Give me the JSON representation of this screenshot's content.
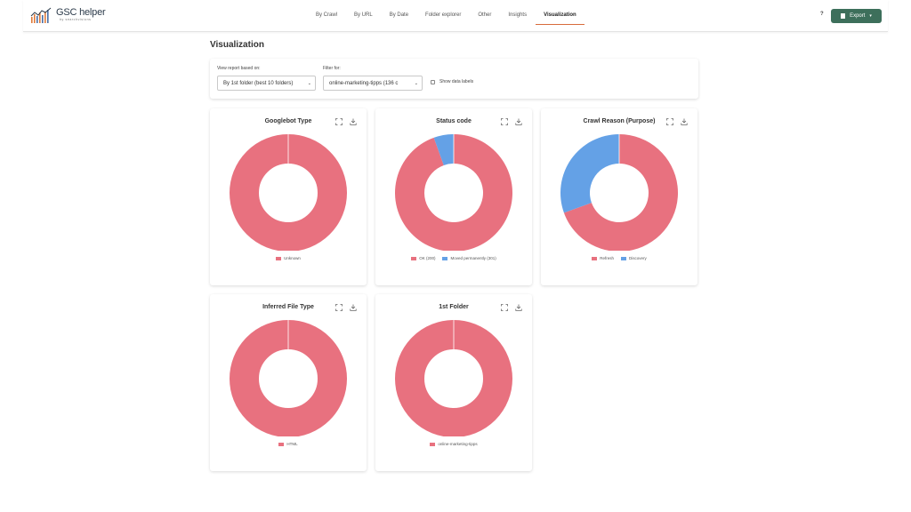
{
  "app": {
    "logo_text": "GSC helper",
    "logo_subtext": "by searchvisions"
  },
  "nav": {
    "items": [
      {
        "label": "By Crawl",
        "active": false
      },
      {
        "label": "By URL",
        "active": false
      },
      {
        "label": "By Date",
        "active": false
      },
      {
        "label": "Folder explorer",
        "active": false
      },
      {
        "label": "Other",
        "active": false
      },
      {
        "label": "Insights",
        "active": false
      },
      {
        "label": "Visualization",
        "active": true
      }
    ],
    "help_label": "?",
    "export_label": "Export"
  },
  "page": {
    "title": "Visualization"
  },
  "filters": {
    "report_label": "View report based on:",
    "report_value": "By 1st folder (best 10 folders)",
    "filter_label": "Filter for:",
    "filter_value": "online-marketing-tipps (136 c",
    "data_labels_label": "Show data labels",
    "data_labels_checked": false
  },
  "colors": {
    "pink": "#e8717f",
    "blue": "#64a1e6",
    "accent": "#d76b3c",
    "export_bg": "#3d6f5b"
  },
  "chart_data": [
    {
      "type": "pie",
      "title": "Googlebot Type",
      "categories": [
        "Unknown"
      ],
      "values": [
        100
      ],
      "colors": [
        "#e8717f"
      ],
      "legend": "bottom"
    },
    {
      "type": "pie",
      "title": "Status code",
      "categories": [
        "OK (200)",
        "Moved permanently (301)"
      ],
      "values": [
        94.5,
        5.5
      ],
      "colors": [
        "#e8717f",
        "#64a1e6"
      ],
      "legend": "bottom"
    },
    {
      "type": "pie",
      "title": "Crawl Reason (Purpose)",
      "categories": [
        "Refresh",
        "Discovery"
      ],
      "values": [
        69.5,
        30.5
      ],
      "colors": [
        "#e8717f",
        "#64a1e6"
      ],
      "legend": "bottom"
    },
    {
      "type": "pie",
      "title": "Inferred File Type",
      "categories": [
        "HTML"
      ],
      "values": [
        100
      ],
      "colors": [
        "#e8717f"
      ],
      "legend": "bottom"
    },
    {
      "type": "pie",
      "title": "1st Folder",
      "categories": [
        "online-marketing-tipps"
      ],
      "values": [
        100
      ],
      "colors": [
        "#e8717f"
      ],
      "legend": "bottom"
    }
  ]
}
